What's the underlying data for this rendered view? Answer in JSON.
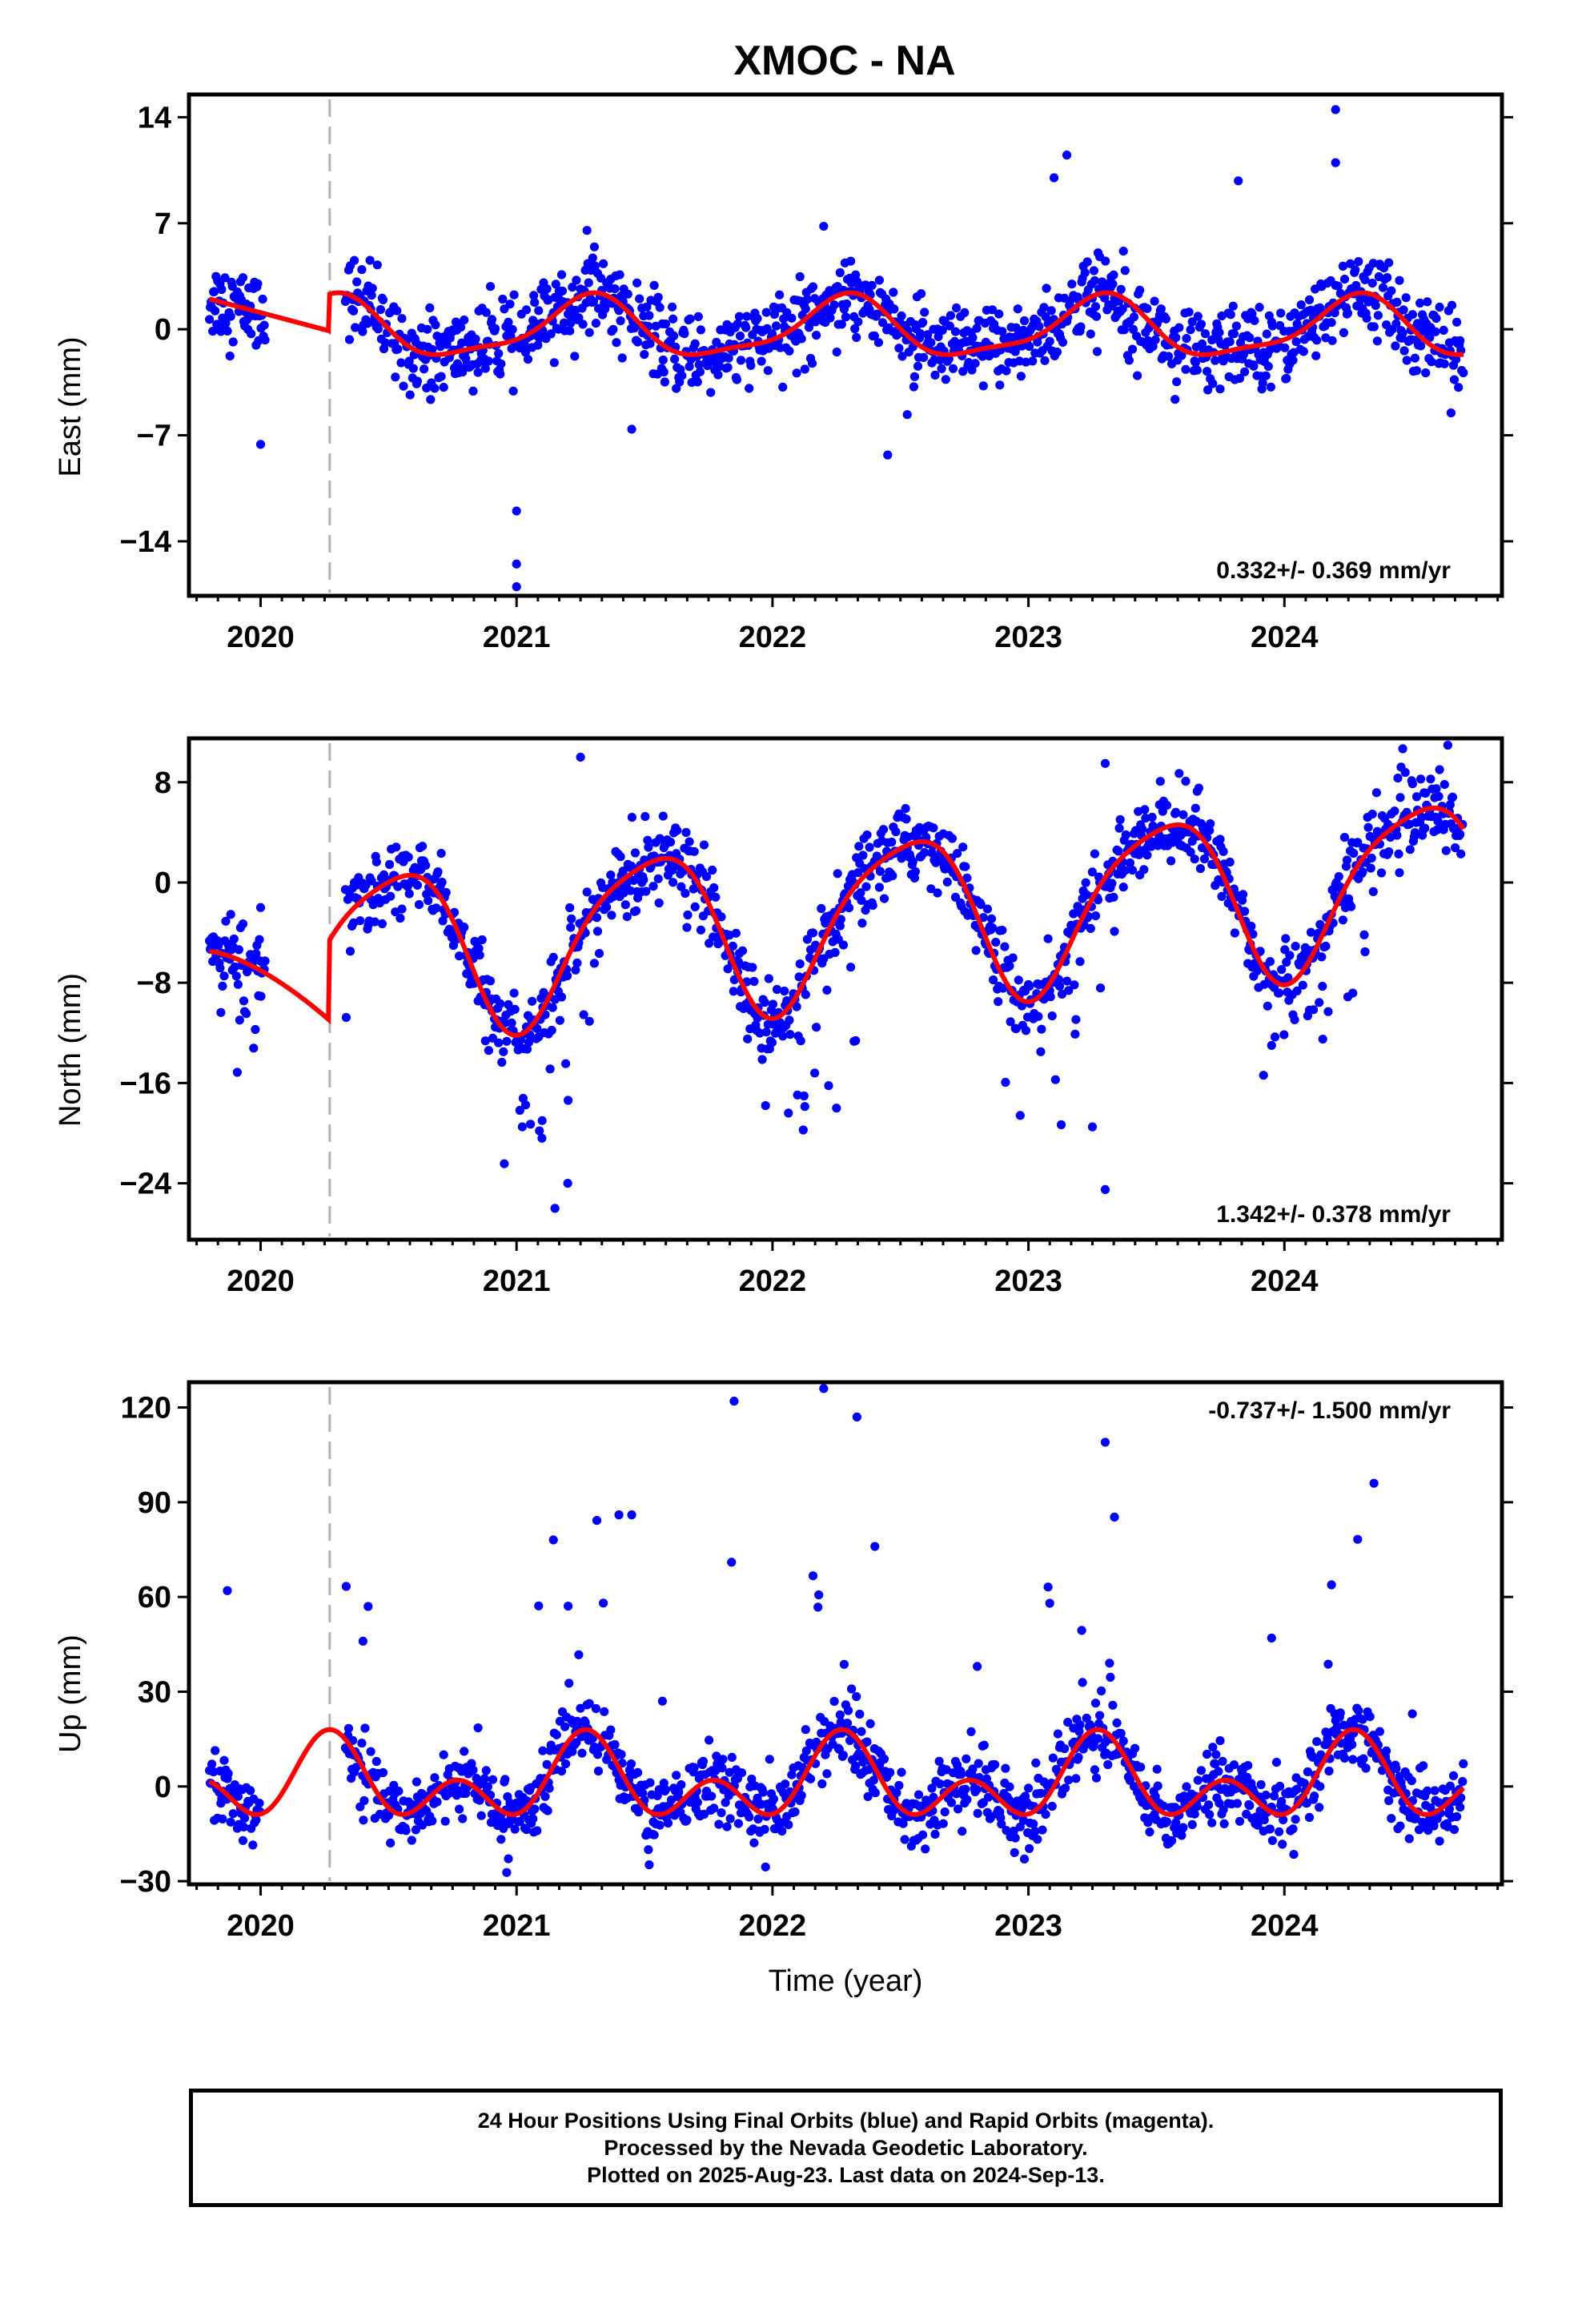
{
  "title": "XMOC - NA",
  "colors": {
    "final_orbits": "#0000ff",
    "model_fit": "#ff0000",
    "antenna_change_line": "#b4b4b4"
  },
  "footer": {
    "line1": "24 Hour Positions Using Final Orbits (blue) and Rapid Orbits (magenta).",
    "line2": "Processed by the Nevada Geodetic Laboratory.",
    "line3": "Plotted on 2025-Aug-23. Last data on 2024-Sep-13."
  },
  "chart_data": [
    {
      "type": "scatter",
      "component": "east",
      "ylabel": "East (mm)",
      "xlabel": "",
      "xlim": [
        2019.72,
        2024.85
      ],
      "ylim": [
        -17.6,
        15.5
      ],
      "xticks": [
        "2020",
        "2021",
        "2022",
        "2023",
        "2024"
      ],
      "yticks": [
        "14",
        "7",
        "0",
        "−7",
        "−14"
      ],
      "ytick_values": [
        14,
        7,
        0,
        -7,
        -14
      ],
      "x_range": [
        2019.8,
        2024.7
      ],
      "mean_seasonal_amplitude": 2.3,
      "model_offset": 0.5,
      "rate": "0.332+/- 0.369 mm/yr",
      "rate_position": "bottom-right",
      "antenna_change_year": 2020.27,
      "data_gap": [
        2020.02,
        2020.27
      ],
      "outliers": [
        [
          2020.0,
          -7.6
        ],
        [
          2021.0,
          -12.0
        ],
        [
          2021.0,
          -15.5
        ],
        [
          2021.0,
          -17.0
        ],
        [
          2023.1,
          10.0
        ],
        [
          2023.15,
          11.5
        ],
        [
          2023.82,
          9.8
        ],
        [
          2024.2,
          14.5
        ],
        [
          2024.2,
          11.0
        ],
        [
          2022.2,
          6.8
        ],
        [
          2021.45,
          -6.6
        ],
        [
          2022.45,
          -8.3
        ]
      ],
      "series": [
        {
          "values_description_free": true
        }
      ]
    },
    {
      "type": "scatter",
      "component": "north",
      "ylabel": "North (mm)",
      "xlabel": "",
      "xlim": [
        2019.72,
        2024.85
      ],
      "ylim": [
        -28.5,
        11.5
      ],
      "xticks": [
        "2020",
        "2021",
        "2022",
        "2023",
        "2024"
      ],
      "yticks": [
        "8",
        "0",
        "−8",
        "−16",
        "−24"
      ],
      "ytick_values": [
        8,
        0,
        -8,
        -16,
        -24
      ],
      "x_range": [
        2019.8,
        2024.7
      ],
      "rate": "1.342+/- 0.378 mm/yr",
      "rate_position": "bottom-right",
      "antenna_change_year": 2020.27,
      "outliers": [
        [
          2021.1,
          -19.0
        ],
        [
          2021.15,
          -26.0
        ],
        [
          2021.2,
          -24.0
        ],
        [
          2021.25,
          10.0
        ],
        [
          2022.25,
          -18.0
        ],
        [
          2023.25,
          -19.5
        ],
        [
          2023.3,
          -24.5
        ],
        [
          2023.3,
          9.5
        ],
        [
          2023.95,
          -13.0
        ],
        [
          2024.15,
          -12.5
        ],
        [
          2020.0,
          -2.0
        ]
      ]
    },
    {
      "type": "scatter",
      "component": "up",
      "ylabel": "Up (mm)",
      "xlabel": "Time (year)",
      "xlim": [
        2019.72,
        2024.85
      ],
      "ylim": [
        -31,
        128
      ],
      "xticks": [
        "2020",
        "2021",
        "2022",
        "2023",
        "2024"
      ],
      "yticks": [
        "120",
        "90",
        "60",
        "30",
        "0",
        "−30"
      ],
      "ytick_values": [
        120,
        90,
        60,
        30,
        0,
        -30
      ],
      "x_range": [
        2019.8,
        2024.7
      ],
      "rate": "-0.737+/- 1.500 mm/yr",
      "rate_position": "top-right",
      "antenna_change_year": 2020.27,
      "data_gap": [
        2020.0,
        2020.33
      ],
      "outliers": [
        [
          2019.87,
          62
        ],
        [
          2020.42,
          57
        ],
        [
          2020.4,
          46
        ],
        [
          2021.4,
          86
        ],
        [
          2021.45,
          86
        ],
        [
          2021.57,
          27
        ],
        [
          2021.85,
          122
        ],
        [
          2021.84,
          71
        ],
        [
          2022.2,
          126
        ],
        [
          2022.33,
          117
        ],
        [
          2022.4,
          76
        ],
        [
          2022.8,
          38
        ],
        [
          2023.3,
          109
        ],
        [
          2023.95,
          47
        ],
        [
          2024.35,
          96
        ],
        [
          2024.5,
          23
        ]
      ]
    }
  ]
}
